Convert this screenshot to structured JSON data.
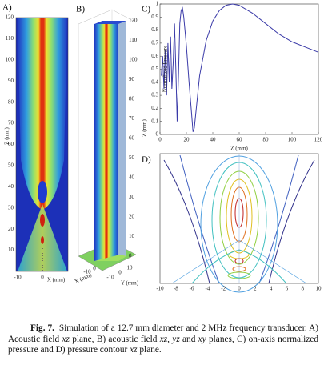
{
  "panel_a": {
    "label": "A)",
    "ylabel": "Z (mm)",
    "xlabel": "X (mm)",
    "yticks": [
      10,
      20,
      30,
      40,
      50,
      60,
      70,
      80,
      90,
      100,
      110,
      120
    ],
    "xticks": [
      -10,
      0
    ]
  },
  "panel_b": {
    "label": "B)",
    "zlabel": "Z (mm)",
    "xlabel": "X (mm)",
    "ylabel": "Y (mm)",
    "zticks": [
      0,
      10,
      20,
      30,
      40,
      50,
      60,
      70,
      80,
      90,
      100,
      110,
      120
    ],
    "xticks": [
      -10,
      0
    ],
    "yticks": [
      -10,
      0,
      10
    ]
  },
  "chart_data": {
    "type": "line",
    "label": "C)",
    "xlabel": "Z (mm)",
    "ylabel": "Normalized Pressure",
    "xlim": [
      0,
      120
    ],
    "ylim": [
      0,
      1
    ],
    "xticks": [
      0,
      20,
      40,
      60,
      80,
      100,
      120
    ],
    "yticks": [
      0,
      0.1,
      0.2,
      0.3,
      0.4,
      0.5,
      0.6,
      0.7,
      0.8,
      0.9,
      1
    ],
    "color": "#3a3aa8",
    "x": [
      1,
      2,
      3,
      4,
      5,
      6,
      7,
      8,
      9,
      10,
      11,
      12,
      13,
      14,
      15,
      16,
      17,
      18,
      20,
      22,
      24,
      25,
      26,
      28,
      30,
      35,
      40,
      45,
      50,
      55,
      60,
      70,
      80,
      90,
      100,
      110,
      120
    ],
    "values": [
      0.45,
      0.6,
      0.35,
      0.65,
      0.3,
      0.7,
      0.4,
      0.75,
      0.35,
      0.55,
      0.85,
      0.5,
      0.1,
      0.45,
      0.85,
      0.95,
      0.97,
      0.9,
      0.68,
      0.4,
      0.15,
      0.02,
      0.05,
      0.25,
      0.45,
      0.72,
      0.87,
      0.95,
      0.99,
      1.0,
      0.99,
      0.93,
      0.85,
      0.77,
      0.71,
      0.67,
      0.63
    ]
  },
  "panel_d": {
    "label": "D)",
    "xticks": [
      -10,
      -8,
      -6,
      -4,
      -2,
      0,
      2,
      4,
      6,
      8,
      10
    ]
  },
  "caption": {
    "label": "Fig. 7.",
    "segments": [
      "Simulation of a 12.7 mm diameter and 2 MHz frequency transducer. A) Acoustic field ",
      "xz",
      " plane, B) acoustic field ",
      "xz, yz",
      " and ",
      "xy",
      " planes, C) on-axis normalized pressure and D) pressure contour ",
      "xz",
      " plane."
    ]
  }
}
